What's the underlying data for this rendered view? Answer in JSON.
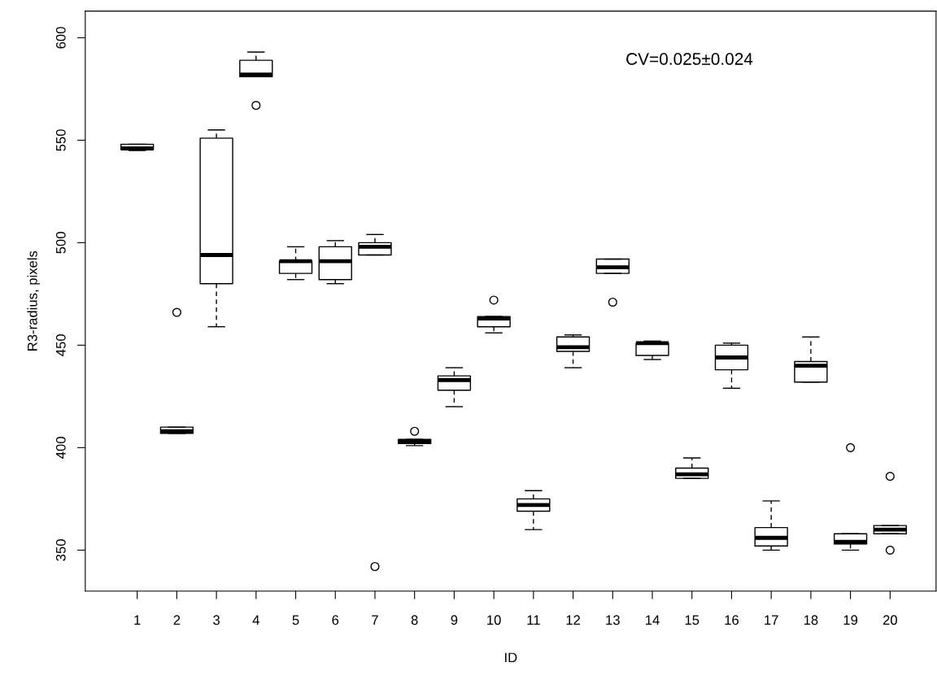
{
  "chart_data": {
    "type": "box",
    "xlabel": "ID",
    "ylabel": "R3-radius, pixels",
    "categories": [
      "1",
      "2",
      "3",
      "4",
      "5",
      "6",
      "7",
      "8",
      "9",
      "10",
      "11",
      "12",
      "13",
      "14",
      "15",
      "16",
      "17",
      "18",
      "19",
      "20"
    ],
    "boxes": [
      {
        "low": 545,
        "q1": 545.5,
        "median": 546,
        "q3": 548,
        "high": 548
      },
      {
        "low": 407,
        "q1": 407,
        "median": 408,
        "q3": 410,
        "high": 410,
        "outliers": [
          466
        ]
      },
      {
        "low": 459,
        "q1": 480,
        "median": 494,
        "q3": 551,
        "high": 555
      },
      {
        "low": 581,
        "q1": 581,
        "median": 582,
        "q3": 589,
        "high": 593,
        "outliers": [
          567
        ]
      },
      {
        "low": 482,
        "q1": 485,
        "median": 491,
        "q3": 491,
        "high": 498
      },
      {
        "low": 480,
        "q1": 482,
        "median": 491,
        "q3": 498,
        "high": 501
      },
      {
        "low": 494,
        "q1": 494,
        "median": 498,
        "q3": 500,
        "high": 504,
        "outliers": [
          342
        ]
      },
      {
        "low": 401,
        "q1": 402,
        "median": 403,
        "q3": 404,
        "high": 404,
        "outliers": [
          408
        ]
      },
      {
        "low": 420,
        "q1": 428,
        "median": 433,
        "q3": 435,
        "high": 439
      },
      {
        "low": 456,
        "q1": 459,
        "median": 463,
        "q3": 464,
        "high": 464,
        "outliers": [
          472
        ]
      },
      {
        "low": 360,
        "q1": 369,
        "median": 372,
        "q3": 375,
        "high": 379
      },
      {
        "low": 439,
        "q1": 447,
        "median": 449,
        "q3": 454,
        "high": 455
      },
      {
        "low": 485,
        "q1": 485,
        "median": 488,
        "q3": 492,
        "high": 492,
        "outliers": [
          471
        ]
      },
      {
        "low": 443,
        "q1": 445,
        "median": 451,
        "q3": 451,
        "high": 452
      },
      {
        "low": 385,
        "q1": 385,
        "median": 387,
        "q3": 390,
        "high": 395
      },
      {
        "low": 429,
        "q1": 438,
        "median": 444,
        "q3": 450,
        "high": 451
      },
      {
        "low": 350,
        "q1": 352,
        "median": 356,
        "q3": 361,
        "high": 374
      },
      {
        "low": 432,
        "q1": 432,
        "median": 440,
        "q3": 442,
        "high": 454
      },
      {
        "low": 350,
        "q1": 353,
        "median": 354,
        "q3": 358,
        "high": 358,
        "outliers": [
          400
        ]
      },
      {
        "low": 358,
        "q1": 358,
        "median": 360,
        "q3": 362,
        "high": 362,
        "outliers": [
          386,
          350
        ]
      }
    ],
    "ylim": [
      330,
      613
    ],
    "yticks": [
      350,
      400,
      450,
      500,
      550,
      600
    ],
    "annotations": [
      "CV=0.025±0.024"
    ]
  }
}
